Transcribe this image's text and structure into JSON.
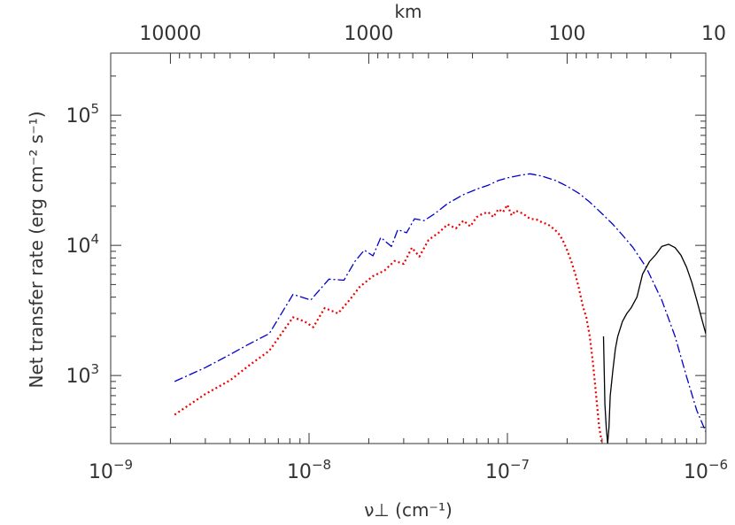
{
  "chart_data": {
    "type": "line",
    "title": "",
    "xlabel": "ν⊥ (cm⁻¹)",
    "ylabel": "Net transfer rate (erg cm⁻² s⁻¹)",
    "top_xlabel": "km",
    "xscale": "log",
    "yscale": "log",
    "xlim": [
      1e-09,
      1e-06
    ],
    "ylim": [
      300,
      300000
    ],
    "x_ticks": [
      {
        "value": 1e-09,
        "base": "10",
        "exp": "−9"
      },
      {
        "value": 1e-08,
        "base": "10",
        "exp": "−8"
      },
      {
        "value": 1e-07,
        "base": "10",
        "exp": "−7"
      },
      {
        "value": 1e-06,
        "base": "10",
        "exp": "−6"
      }
    ],
    "y_ticks": [
      {
        "value": 1000,
        "base": "10",
        "exp": "3"
      },
      {
        "value": 10000,
        "base": "10",
        "exp": "4"
      },
      {
        "value": 100000,
        "base": "10",
        "exp": "5"
      }
    ],
    "top_ticks": [
      {
        "label": "10000",
        "value": 2e-09
      },
      {
        "label": "1000",
        "value": 2e-08
      },
      {
        "label": "100",
        "value": 2e-07
      },
      {
        "label": "10",
        "value": 2e-06
      }
    ],
    "grid": false,
    "legend": "none",
    "series": [
      {
        "color": "#0000cc",
        "dash": "10,3,2,3",
        "x": [
          2.1e-09,
          3e-09,
          4e-09,
          5e-09,
          6.3e-09,
          8.3e-09,
          1.02e-08,
          1.26e-08,
          1.5e-08,
          1.7e-08,
          1.9e-08,
          2.1e-08,
          2.3e-08,
          2.6e-08,
          2.8e-08,
          3.1e-08,
          3.4e-08,
          3.8e-08,
          4.3e-08,
          5e-08,
          6e-08,
          7e-08,
          8e-08,
          9e-08,
          1e-07,
          1.15e-07,
          1.3e-07,
          1.5e-07,
          1.75e-07,
          2e-07,
          2.3e-07,
          2.6e-07,
          3e-07,
          3.4e-07,
          3.8e-07,
          4.3e-07,
          5e-07,
          6e-07,
          7e-07,
          8e-07,
          9e-07,
          1e-06
        ],
        "y": [
          900,
          1150,
          1450,
          1750,
          2100,
          4200,
          3800,
          5500,
          5400,
          7500,
          9200,
          8300,
          11500,
          9800,
          13200,
          12500,
          16000,
          15500,
          17500,
          21000,
          24500,
          27000,
          29000,
          31500,
          33000,
          34500,
          35500,
          34000,
          31500,
          28500,
          25000,
          21500,
          17500,
          14500,
          12000,
          9600,
          6800,
          3800,
          2000,
          980,
          540,
          370
        ]
      },
      {
        "color": "#ee0000",
        "dash": "2,3",
        "x": [
          2.1e-09,
          3e-09,
          4e-09,
          5e-09,
          6.3e-09,
          8.3e-09,
          9.5e-09,
          1.05e-08,
          1.2e-08,
          1.4e-08,
          1.6e-08,
          1.8e-08,
          2.1e-08,
          2.4e-08,
          2.7e-08,
          3e-08,
          3.3e-08,
          3.6e-08,
          4e-08,
          4.5e-08,
          5e-08,
          5.5e-08,
          6e-08,
          6.5e-08,
          7e-08,
          7.5e-08,
          8e-08,
          8.5e-08,
          9e-08,
          9.5e-08,
          1e-07,
          1.05e-07,
          1.1e-07,
          1.2e-07,
          1.3e-07,
          1.4e-07,
          1.5e-07,
          1.6e-07,
          1.7e-07,
          1.8e-07,
          1.9e-07,
          2e-07,
          2.1e-07,
          2.2e-07,
          2.3e-07,
          2.4e-07,
          2.5e-07,
          2.6e-07,
          2.7e-07,
          2.8e-07,
          2.9e-07,
          3e-07
        ],
        "y": [
          500,
          720,
          920,
          1200,
          1550,
          2800,
          2600,
          2350,
          3300,
          3000,
          3800,
          4800,
          5800,
          6400,
          7600,
          7200,
          9600,
          8200,
          11000,
          12500,
          14500,
          13500,
          15500,
          14000,
          16500,
          17500,
          18000,
          16500,
          19000,
          18000,
          20500,
          17000,
          18500,
          17500,
          16000,
          15800,
          15000,
          14500,
          13500,
          12500,
          11000,
          9200,
          7500,
          6000,
          4600,
          3400,
          2800,
          2000,
          1250,
          700,
          400,
          300
        ]
      },
      {
        "color": "#000000",
        "dash": "",
        "x": [
          3.05e-07,
          3.1e-07,
          3.15e-07,
          3.2e-07,
          3.25e-07,
          3.3e-07,
          3.4e-07,
          3.5e-07,
          3.6e-07,
          3.8e-07,
          4e-07,
          4.2e-07,
          4.5e-07,
          4.8e-07,
          5.2e-07,
          5.6e-07,
          6e-07,
          6.5e-07,
          7e-07,
          7.5e-07,
          8e-07,
          8.5e-07,
          9e-07,
          9.5e-07,
          1e-06
        ],
        "y": [
          2000,
          600,
          400,
          300,
          400,
          700,
          1100,
          1600,
          2000,
          2600,
          3000,
          3300,
          4000,
          6000,
          7500,
          8500,
          9800,
          10200,
          9600,
          8400,
          6800,
          5200,
          3800,
          2800,
          2100
        ]
      }
    ]
  }
}
